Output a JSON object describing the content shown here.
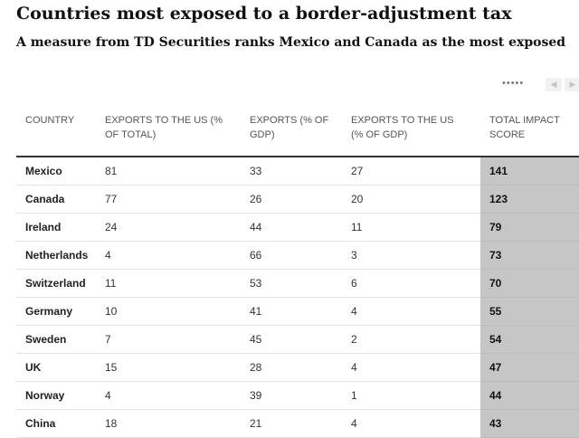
{
  "title": "Countries most exposed to a border-adjustment tax",
  "subtitle": "A measure from TD Securities ranks Mexico and Canada as the most exposed",
  "pager": {
    "dots": "•••••",
    "prev_icon": "chevron-left-icon",
    "next_icon": "chevron-right-icon"
  },
  "chart_data": {
    "type": "table",
    "columns": [
      "COUNTRY",
      "EXPORTS TO THE US (% OF TOTAL)",
      "EXPORTS (% OF GDP)",
      "EXPORTS TO THE US (% OF GDP)",
      "TOTAL IMPACT SCORE"
    ],
    "rows": [
      [
        "Mexico",
        81,
        33,
        27,
        141
      ],
      [
        "Canada",
        77,
        26,
        20,
        123
      ],
      [
        "Ireland",
        24,
        44,
        11,
        79
      ],
      [
        "Netherlands",
        4,
        66,
        3,
        73
      ],
      [
        "Switzerland",
        11,
        53,
        6,
        70
      ],
      [
        "Germany",
        10,
        41,
        4,
        55
      ],
      [
        "Sweden",
        7,
        45,
        2,
        54
      ],
      [
        "UK",
        15,
        28,
        4,
        47
      ],
      [
        "Norway",
        4,
        39,
        1,
        44
      ],
      [
        "China",
        18,
        21,
        4,
        43
      ]
    ],
    "highlight_column": "TOTAL IMPACT SCORE",
    "highlight_color": "#c6c6c6"
  }
}
